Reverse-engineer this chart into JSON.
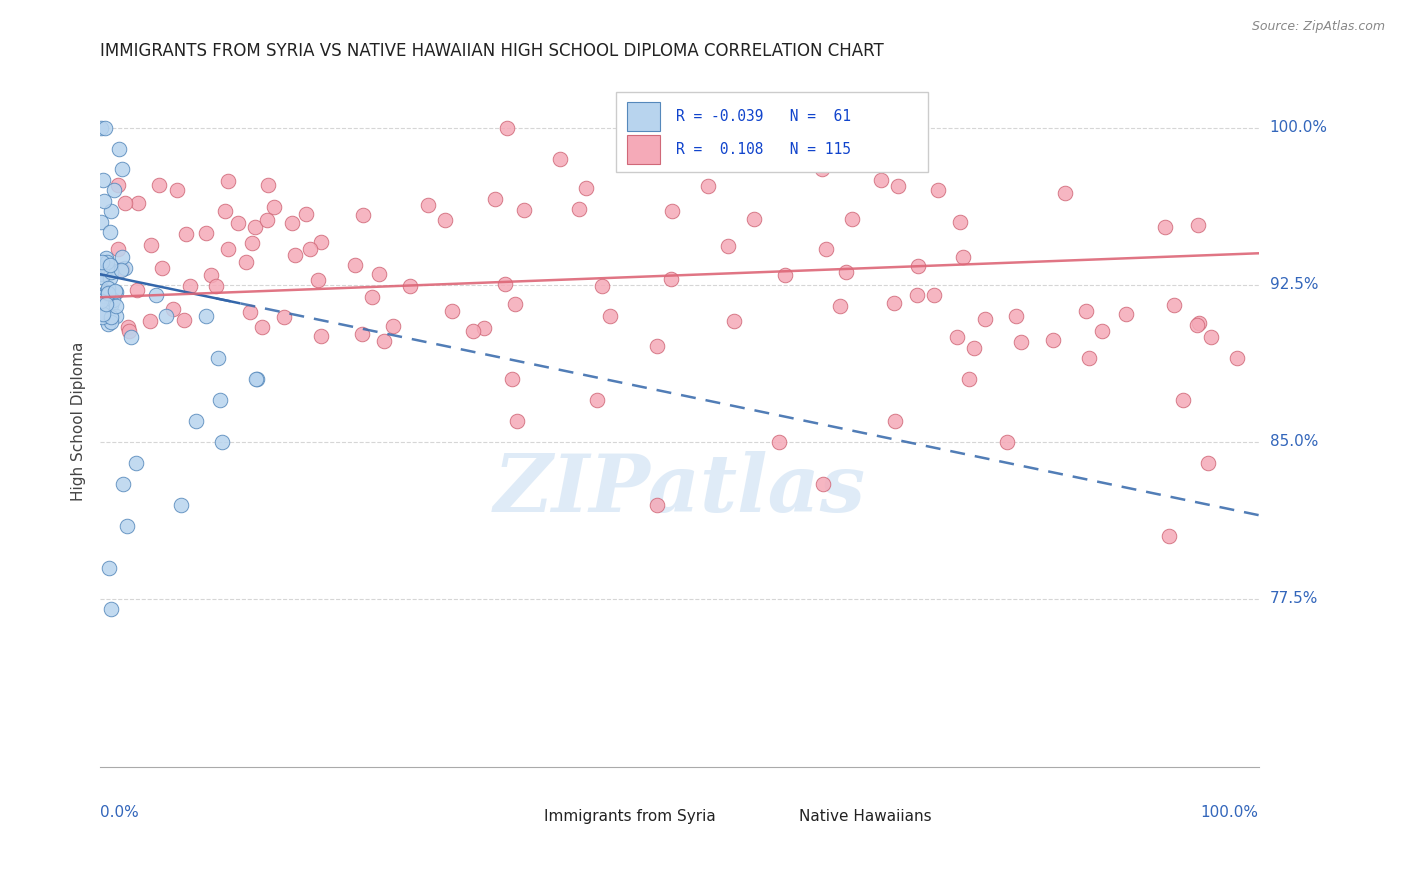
{
  "title": "IMMIGRANTS FROM SYRIA VS NATIVE HAWAIIAN HIGH SCHOOL DIPLOMA CORRELATION CHART",
  "source": "Source: ZipAtlas.com",
  "ylabel": "High School Diploma",
  "ytick_labels": [
    "100.0%",
    "92.5%",
    "85.0%",
    "77.5%"
  ],
  "ytick_values": [
    1.0,
    0.925,
    0.85,
    0.775
  ],
  "watermark": "ZIPatlas",
  "legend_box": {
    "R_syria": -0.039,
    "N_syria": 61,
    "R_hawaii": 0.108,
    "N_hawaii": 115
  },
  "x_range": [
    0.0,
    1.0
  ],
  "y_range": [
    0.695,
    1.025
  ],
  "syria_color": "#b8d4ee",
  "syria_edge": "#5588bb",
  "hawaii_color": "#f5aab8",
  "hawaii_edge": "#d06878",
  "syria_trend_color": "#3366aa",
  "hawaii_trend_color": "#dd6677",
  "grid_color": "#cccccc",
  "title_color": "#222222",
  "axis_label_color": "#3366bb",
  "watermark_color": "#c0d8f0",
  "syria_trend_x": [
    0.0,
    1.0
  ],
  "syria_trend_y": [
    0.93,
    0.815
  ],
  "hawaii_trend_x": [
    0.0,
    1.0
  ],
  "hawaii_trend_y": [
    0.919,
    0.94
  ]
}
